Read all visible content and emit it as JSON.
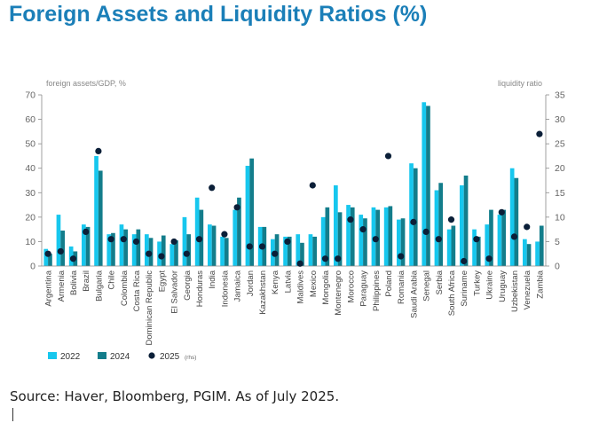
{
  "title": "Foreign Assets and Liquidity Ratios (%)",
  "source": "Source: Haver, Bloomberg, PGIM. As of July 2025.",
  "chart_data": {
    "type": "bar",
    "ylabel": "foreign assets/GDP, %",
    "y2label": "liquidity ratio",
    "ylim": [
      0,
      70
    ],
    "y2lim": [
      0,
      35
    ],
    "yticks": [
      0,
      10,
      20,
      30,
      40,
      50,
      60,
      70
    ],
    "y2ticks": [
      0,
      5,
      10,
      15,
      20,
      25,
      30,
      35
    ],
    "colors": {
      "s2022": "#17c7ee",
      "s2024": "#137d8b",
      "s2025": "#0b1f38",
      "axis": "#8a8a8a",
      "tick": "#666666"
    },
    "categories": [
      "Argentina",
      "Armenia",
      "Bolivia",
      "Brazil",
      "Bulgaria",
      "Chile",
      "Colombia",
      "Costa Rica",
      "Dominican Republic",
      "Egypt",
      "El Salvador",
      "Georgia",
      "Honduras",
      "India",
      "Indonesia",
      "Jamaica",
      "Jordan",
      "Kazakhstan",
      "Kenya",
      "Latvia",
      "Maldives",
      "Mexico",
      "Mongolia",
      "Montenegro",
      "Morocco",
      "Paraguay",
      "Philippines",
      "Poland",
      "Romania",
      "Saudi Arabia",
      "Senegal",
      "Serbia",
      "South Africa",
      "Suriname",
      "Turkey",
      "Ukraine",
      "Uruguay",
      "Uzbekistan",
      "Venezuela",
      "Zambia"
    ],
    "series": [
      {
        "name": "2022",
        "key": "s2022",
        "kind": "bar",
        "axis": "left",
        "values": [
          7,
          21,
          8,
          17,
          45,
          13,
          17,
          13,
          13,
          10,
          9,
          20,
          28,
          17,
          12,
          23,
          41,
          16,
          11,
          12,
          13,
          13,
          20,
          33,
          25,
          21,
          24,
          24,
          19,
          42,
          67,
          31,
          15,
          33,
          15,
          17,
          21,
          40,
          11,
          10
        ]
      },
      {
        "name": "2024",
        "key": "s2024",
        "kind": "bar",
        "axis": "left",
        "values": [
          5,
          14.5,
          6,
          16,
          39,
          13.5,
          15,
          15,
          11.5,
          12.5,
          10.5,
          13,
          23,
          16.5,
          11.5,
          28,
          44,
          16,
          13,
          12,
          9.5,
          12,
          24,
          22,
          24,
          19.5,
          23,
          24.5,
          19.5,
          40,
          65.5,
          34,
          16.5,
          37,
          12,
          23,
          23,
          36,
          9,
          16.5
        ]
      },
      {
        "name": "2025",
        "key": "s2025",
        "kind": "dot",
        "axis": "right",
        "legend_note": "(rhs)",
        "values": [
          2.5,
          3,
          1.5,
          7,
          23.5,
          5.5,
          5.5,
          5,
          2.5,
          2,
          5,
          2.5,
          5.5,
          16,
          6.5,
          12,
          4,
          4,
          2.5,
          5,
          0.5,
          16.5,
          1.5,
          1.5,
          9.5,
          7.5,
          5.5,
          22.5,
          2,
          9,
          7,
          5.5,
          9.5,
          1,
          5.5,
          1.5,
          11,
          6,
          8,
          27
        ]
      }
    ]
  }
}
